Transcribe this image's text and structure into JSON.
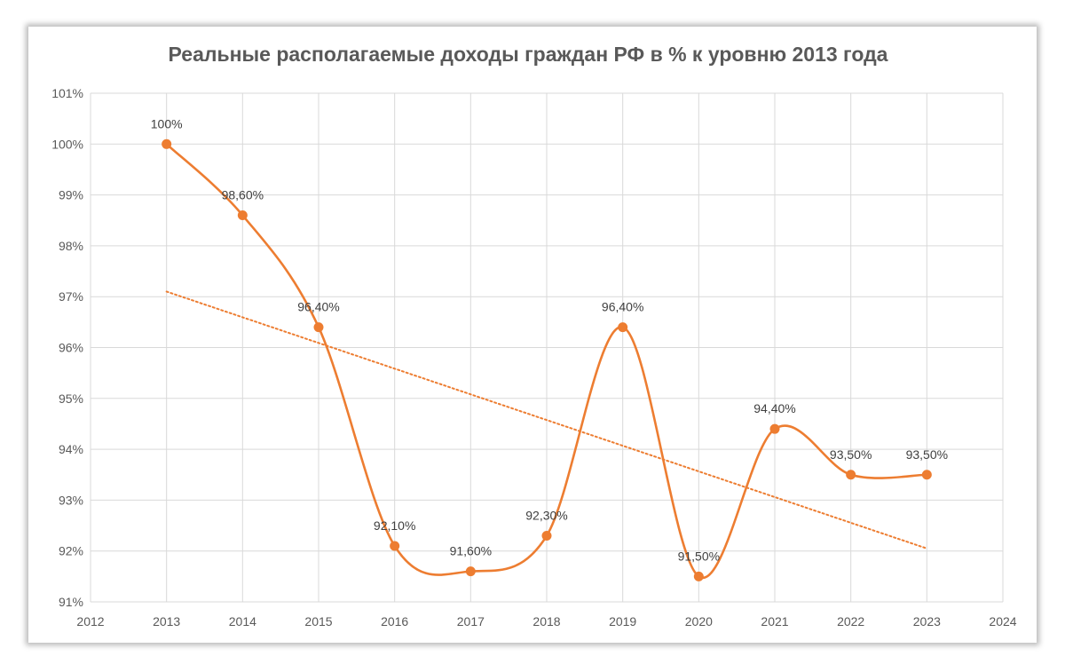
{
  "chart_data": {
    "type": "line",
    "title": "Реальные располагаемые доходы граждан РФ в % к уровню 2013 года",
    "xlabel": "",
    "ylabel": "",
    "xlim": [
      2012,
      2024
    ],
    "ylim": [
      91,
      101
    ],
    "x_ticks": [
      2012,
      2013,
      2014,
      2015,
      2016,
      2017,
      2018,
      2019,
      2020,
      2021,
      2022,
      2023,
      2024
    ],
    "x_tick_labels": [
      "2012",
      "2013",
      "2014",
      "2015",
      "2016",
      "2017",
      "2018",
      "2019",
      "2020",
      "2021",
      "2022",
      "2023",
      "2024"
    ],
    "y_ticks": [
      91,
      92,
      93,
      94,
      95,
      96,
      97,
      98,
      99,
      100,
      101
    ],
    "y_tick_labels": [
      "91%",
      "92%",
      "93%",
      "94%",
      "95%",
      "96%",
      "97%",
      "98%",
      "99%",
      "100%",
      "101%"
    ],
    "grid": true,
    "legend": "none",
    "series": [
      {
        "x": [
          2013,
          2014,
          2015,
          2016,
          2017,
          2018,
          2019,
          2020,
          2021,
          2022,
          2023
        ],
        "values": [
          100,
          98.6,
          96.4,
          92.1,
          91.6,
          92.3,
          96.4,
          91.5,
          94.4,
          93.5,
          93.5
        ],
        "data_labels": [
          "100%",
          "98,60%",
          "96,40%",
          "92,10%",
          "91,60%",
          "92,30%",
          "96,40%",
          "91,50%",
          "94,40%",
          "93,50%",
          "93,50%"
        ],
        "color": "#ED7D31",
        "smooth": true,
        "markers": true
      }
    ],
    "trendline": {
      "type": "linear",
      "style": "dotted",
      "color": "#ED7D31",
      "x": [
        2013,
        2023
      ],
      "values": [
        97.1,
        92.05
      ]
    }
  }
}
